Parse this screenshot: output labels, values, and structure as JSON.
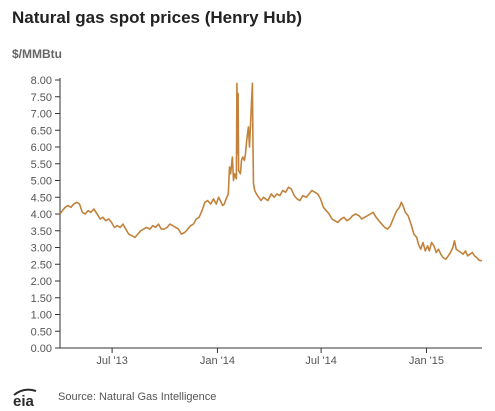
{
  "title": "Natural gas spot prices (Henry Hub)",
  "units_label": "$/MMBtu",
  "source": "Source: Natural Gas Intelligence",
  "logo_text": "eia",
  "colors": {
    "line": "#c2823c",
    "axis": "#333333",
    "text": "#555555",
    "logo": "#2b2b2b"
  },
  "chart_data": {
    "type": "line",
    "title": "Natural gas spot prices (Henry Hub)",
    "ylabel": "$/MMBtu",
    "xlabel": "",
    "ylim": [
      0,
      8
    ],
    "xlim": [
      "2013-04-01",
      "2015-04-08"
    ],
    "y_ticks": [
      "0.00",
      "0.50",
      "1.00",
      "1.50",
      "2.00",
      "2.50",
      "3.00",
      "3.50",
      "4.00",
      "4.50",
      "5.00",
      "5.50",
      "6.00",
      "6.50",
      "7.00",
      "7.50",
      "8.00"
    ],
    "x_ticks": [
      {
        "date": "2013-07-01",
        "label": "Jul '13"
      },
      {
        "date": "2014-01-01",
        "label": "Jan '14"
      },
      {
        "date": "2014-07-01",
        "label": "Jul '14"
      },
      {
        "date": "2015-01-01",
        "label": "Jan '15"
      }
    ],
    "grid": false,
    "legend": "none",
    "series": [
      {
        "points": [
          [
            "2013-04-01",
            4.0
          ],
          [
            "2013-04-05",
            4.1
          ],
          [
            "2013-04-10",
            4.2
          ],
          [
            "2013-04-15",
            4.25
          ],
          [
            "2013-04-20",
            4.2
          ],
          [
            "2013-04-25",
            4.3
          ],
          [
            "2013-04-30",
            4.35
          ],
          [
            "2013-05-05",
            4.3
          ],
          [
            "2013-05-10",
            4.05
          ],
          [
            "2013-05-15",
            4.0
          ],
          [
            "2013-05-20",
            4.1
          ],
          [
            "2013-05-25",
            4.05
          ],
          [
            "2013-05-30",
            4.15
          ],
          [
            "2013-06-05",
            4.0
          ],
          [
            "2013-06-10",
            3.85
          ],
          [
            "2013-06-15",
            3.9
          ],
          [
            "2013-06-20",
            3.8
          ],
          [
            "2013-06-25",
            3.85
          ],
          [
            "2013-06-30",
            3.75
          ],
          [
            "2013-07-05",
            3.6
          ],
          [
            "2013-07-10",
            3.65
          ],
          [
            "2013-07-15",
            3.6
          ],
          [
            "2013-07-20",
            3.7
          ],
          [
            "2013-07-25",
            3.55
          ],
          [
            "2013-07-30",
            3.4
          ],
          [
            "2013-08-05",
            3.35
          ],
          [
            "2013-08-10",
            3.3
          ],
          [
            "2013-08-15",
            3.4
          ],
          [
            "2013-08-20",
            3.5
          ],
          [
            "2013-08-25",
            3.55
          ],
          [
            "2013-08-30",
            3.6
          ],
          [
            "2013-09-05",
            3.55
          ],
          [
            "2013-09-10",
            3.65
          ],
          [
            "2013-09-15",
            3.6
          ],
          [
            "2013-09-20",
            3.7
          ],
          [
            "2013-09-25",
            3.55
          ],
          [
            "2013-09-30",
            3.55
          ],
          [
            "2013-10-05",
            3.6
          ],
          [
            "2013-10-10",
            3.7
          ],
          [
            "2013-10-15",
            3.65
          ],
          [
            "2013-10-20",
            3.6
          ],
          [
            "2013-10-25",
            3.55
          ],
          [
            "2013-10-30",
            3.4
          ],
          [
            "2013-11-05",
            3.45
          ],
          [
            "2013-11-10",
            3.55
          ],
          [
            "2013-11-15",
            3.65
          ],
          [
            "2013-11-20",
            3.7
          ],
          [
            "2013-11-25",
            3.85
          ],
          [
            "2013-11-30",
            3.9
          ],
          [
            "2013-12-05",
            4.1
          ],
          [
            "2013-12-10",
            4.35
          ],
          [
            "2013-12-15",
            4.4
          ],
          [
            "2013-12-20",
            4.3
          ],
          [
            "2013-12-25",
            4.45
          ],
          [
            "2013-12-30",
            4.3
          ],
          [
            "2014-01-03",
            4.5
          ],
          [
            "2014-01-06",
            4.4
          ],
          [
            "2014-01-10",
            4.25
          ],
          [
            "2014-01-13",
            4.3
          ],
          [
            "2014-01-16",
            4.45
          ],
          [
            "2014-01-20",
            4.6
          ],
          [
            "2014-01-22",
            5.4
          ],
          [
            "2014-01-24",
            5.2
          ],
          [
            "2014-01-27",
            5.7
          ],
          [
            "2014-01-29",
            5.0
          ],
          [
            "2014-01-31",
            5.2
          ],
          [
            "2014-02-03",
            5.05
          ],
          [
            "2014-02-04",
            7.9
          ],
          [
            "2014-02-05",
            5.8
          ],
          [
            "2014-02-06",
            7.6
          ],
          [
            "2014-02-07",
            5.3
          ],
          [
            "2014-02-10",
            5.2
          ],
          [
            "2014-02-12",
            5.6
          ],
          [
            "2014-02-14",
            5.7
          ],
          [
            "2014-02-17",
            5.6
          ],
          [
            "2014-02-19",
            5.8
          ],
          [
            "2014-02-21",
            6.2
          ],
          [
            "2014-02-24",
            6.6
          ],
          [
            "2014-02-26",
            6.0
          ],
          [
            "2014-03-03",
            7.9
          ],
          [
            "2014-03-04",
            6.0
          ],
          [
            "2014-03-05",
            4.9
          ],
          [
            "2014-03-07",
            4.7
          ],
          [
            "2014-03-10",
            4.6
          ],
          [
            "2014-03-14",
            4.5
          ],
          [
            "2014-03-18",
            4.4
          ],
          [
            "2014-03-22",
            4.5
          ],
          [
            "2014-03-26",
            4.45
          ],
          [
            "2014-03-30",
            4.4
          ],
          [
            "2014-04-05",
            4.6
          ],
          [
            "2014-04-10",
            4.5
          ],
          [
            "2014-04-15",
            4.6
          ],
          [
            "2014-04-20",
            4.55
          ],
          [
            "2014-04-25",
            4.7
          ],
          [
            "2014-04-30",
            4.65
          ],
          [
            "2014-05-05",
            4.8
          ],
          [
            "2014-05-10",
            4.75
          ],
          [
            "2014-05-15",
            4.55
          ],
          [
            "2014-05-20",
            4.45
          ],
          [
            "2014-05-25",
            4.4
          ],
          [
            "2014-05-30",
            4.55
          ],
          [
            "2014-06-05",
            4.5
          ],
          [
            "2014-06-10",
            4.6
          ],
          [
            "2014-06-15",
            4.7
          ],
          [
            "2014-06-20",
            4.65
          ],
          [
            "2014-06-25",
            4.6
          ],
          [
            "2014-06-30",
            4.45
          ],
          [
            "2014-07-05",
            4.2
          ],
          [
            "2014-07-10",
            4.1
          ],
          [
            "2014-07-15",
            4.0
          ],
          [
            "2014-07-20",
            3.85
          ],
          [
            "2014-07-25",
            3.8
          ],
          [
            "2014-07-30",
            3.75
          ],
          [
            "2014-08-05",
            3.85
          ],
          [
            "2014-08-10",
            3.9
          ],
          [
            "2014-08-15",
            3.8
          ],
          [
            "2014-08-20",
            3.85
          ],
          [
            "2014-08-25",
            3.95
          ],
          [
            "2014-08-30",
            4.0
          ],
          [
            "2014-09-05",
            3.95
          ],
          [
            "2014-09-10",
            3.85
          ],
          [
            "2014-09-15",
            3.9
          ],
          [
            "2014-09-20",
            3.95
          ],
          [
            "2014-09-25",
            4.0
          ],
          [
            "2014-09-30",
            4.05
          ],
          [
            "2014-10-05",
            3.9
          ],
          [
            "2014-10-10",
            3.8
          ],
          [
            "2014-10-15",
            3.7
          ],
          [
            "2014-10-20",
            3.6
          ],
          [
            "2014-10-25",
            3.55
          ],
          [
            "2014-10-30",
            3.65
          ],
          [
            "2014-11-05",
            3.9
          ],
          [
            "2014-11-10",
            4.1
          ],
          [
            "2014-11-15",
            4.2
          ],
          [
            "2014-11-18",
            4.35
          ],
          [
            "2014-11-21",
            4.25
          ],
          [
            "2014-11-25",
            4.05
          ],
          [
            "2014-11-30",
            3.95
          ],
          [
            "2014-12-05",
            3.7
          ],
          [
            "2014-12-10",
            3.4
          ],
          [
            "2014-12-15",
            3.3
          ],
          [
            "2014-12-18",
            3.1
          ],
          [
            "2014-12-22",
            2.95
          ],
          [
            "2014-12-26",
            3.15
          ],
          [
            "2014-12-30",
            2.9
          ],
          [
            "2015-01-03",
            3.05
          ],
          [
            "2015-01-06",
            2.9
          ],
          [
            "2015-01-10",
            3.15
          ],
          [
            "2015-01-14",
            3.05
          ],
          [
            "2015-01-18",
            2.85
          ],
          [
            "2015-01-22",
            2.95
          ],
          [
            "2015-01-26",
            2.8
          ],
          [
            "2015-01-30",
            2.7
          ],
          [
            "2015-02-04",
            2.65
          ],
          [
            "2015-02-08",
            2.75
          ],
          [
            "2015-02-12",
            2.85
          ],
          [
            "2015-02-16",
            3.0
          ],
          [
            "2015-02-19",
            3.2
          ],
          [
            "2015-02-22",
            2.95
          ],
          [
            "2015-02-26",
            2.9
          ],
          [
            "2015-03-02",
            2.85
          ],
          [
            "2015-03-06",
            2.8
          ],
          [
            "2015-03-10",
            2.9
          ],
          [
            "2015-03-14",
            2.75
          ],
          [
            "2015-03-18",
            2.8
          ],
          [
            "2015-03-22",
            2.85
          ],
          [
            "2015-03-26",
            2.75
          ],
          [
            "2015-03-30",
            2.7
          ],
          [
            "2015-04-03",
            2.62
          ],
          [
            "2015-04-08",
            2.6
          ]
        ]
      }
    ]
  }
}
